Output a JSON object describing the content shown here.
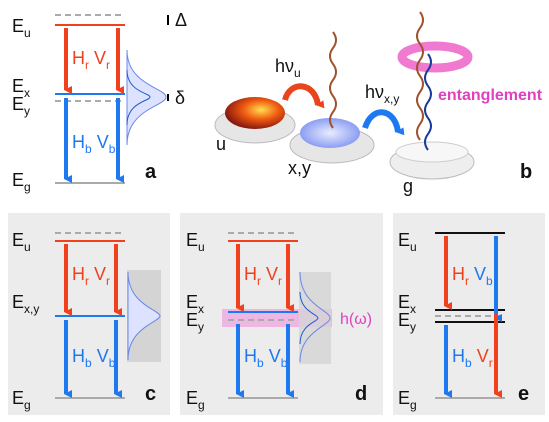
{
  "panel_a": {
    "label": "a",
    "e_u": [
      "E",
      "u"
    ],
    "e_x": [
      "E",
      "x"
    ],
    "e_y": [
      "E",
      "y"
    ],
    "e_g": [
      "E",
      "g"
    ],
    "upper": [
      [
        "H",
        "r"
      ],
      [
        "V",
        "r"
      ]
    ],
    "lower": [
      [
        "H",
        "b"
      ],
      [
        "V",
        "b"
      ]
    ],
    "delta_big": "Δ",
    "delta_small": "δ"
  },
  "panel_b": {
    "label": "b",
    "h_nu_u": [
      "hν",
      "u"
    ],
    "h_nu_xy": [
      "hν",
      "x,y"
    ],
    "dot_u": "u",
    "dot_xy": "x,y",
    "dot_g": "g",
    "entanglement": "entanglement"
  },
  "panel_c": {
    "label": "c",
    "e_u": [
      "E",
      "u"
    ],
    "e_xy": [
      "E",
      "x,y"
    ],
    "e_g": [
      "E",
      "g"
    ],
    "upper": [
      [
        "H",
        "r"
      ],
      [
        "V",
        "r"
      ]
    ],
    "lower": [
      [
        "H",
        "b"
      ],
      [
        "V",
        "b"
      ]
    ]
  },
  "panel_d": {
    "label": "d",
    "e_u": [
      "E",
      "u"
    ],
    "e_x": [
      "E",
      "x"
    ],
    "e_y": [
      "E",
      "y"
    ],
    "e_g": [
      "E",
      "g"
    ],
    "upper": [
      [
        "H",
        "r"
      ],
      [
        "V",
        "r"
      ]
    ],
    "lower": [
      [
        "H",
        "b"
      ],
      [
        "V",
        "b"
      ]
    ],
    "h_omega": "h(ω)"
  },
  "panel_e": {
    "label": "e",
    "e_u": [
      "E",
      "u"
    ],
    "e_x": [
      "E",
      "x"
    ],
    "e_y": [
      "E",
      "y"
    ],
    "e_g": [
      "E",
      "g"
    ],
    "upper": [
      [
        "H",
        "r"
      ],
      [
        "V",
        "b"
      ]
    ],
    "lower": [
      [
        "H",
        "b"
      ],
      [
        "V",
        "r"
      ]
    ]
  }
}
